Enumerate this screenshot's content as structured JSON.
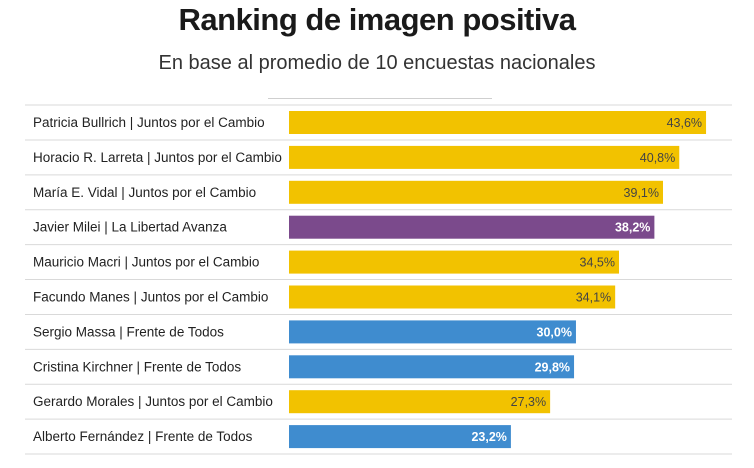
{
  "header": {
    "title": "Ranking de imagen positiva",
    "subtitle": "En base al promedio de 10 encuestas nacionales"
  },
  "colors": {
    "juntos": "#f2c200",
    "libertad": "#7b4a8c",
    "frente": "#3f8ccf"
  },
  "chart_data": {
    "type": "bar",
    "orientation": "horizontal",
    "title": "Ranking de imagen positiva",
    "subtitle": "En base al promedio de 10 encuestas nacionales",
    "categories": [
      "Patricia Bullrich | Juntos por el Cambio",
      "Horacio R. Larreta | Juntos por el Cambio",
      "María E. Vidal | Juntos por el Cambio",
      "Javier Milei | La Libertad Avanza",
      "Mauricio Macri | Juntos por el Cambio",
      "Facundo Manes | Juntos por el Cambio",
      "Sergio Massa | Frente de Todos",
      "Cristina Kirchner | Frente de Todos",
      "Gerardo Morales | Juntos por el Cambio",
      "Alberto Fernández | Frente de Todos"
    ],
    "values": [
      43.6,
      40.8,
      39.1,
      38.2,
      34.5,
      34.1,
      30.0,
      29.8,
      27.3,
      23.2
    ],
    "value_labels": [
      "43,6%",
      "40,8%",
      "39,1%",
      "38,2%",
      "34,5%",
      "34,1%",
      "30,0%",
      "29,8%",
      "27,3%",
      "23,2%"
    ],
    "bar_colors": [
      "#f2c200",
      "#f2c200",
      "#f2c200",
      "#7b4a8c",
      "#f2c200",
      "#f2c200",
      "#3f8ccf",
      "#3f8ccf",
      "#f2c200",
      "#3f8ccf"
    ],
    "xlim": [
      0,
      46
    ],
    "grid": false,
    "legend": "none"
  }
}
